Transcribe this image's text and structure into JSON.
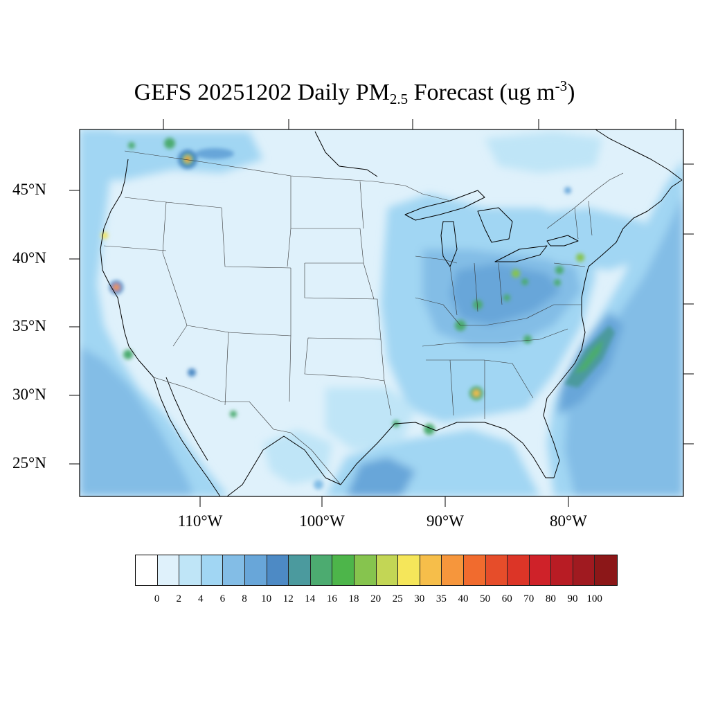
{
  "title": {
    "prefix": "GEFS 20251202 Daily PM",
    "subscript": "2.5",
    "suffix": " Forecast (ug m",
    "superscript": "-3",
    "close": ")"
  },
  "latitude_labels": [
    "45°N",
    "40°N",
    "35°N",
    "30°N",
    "25°N"
  ],
  "longitude_labels": [
    "110°W",
    "100°W",
    "90°W",
    "80°W"
  ],
  "colorbar": {
    "labels": [
      "0",
      "2",
      "4",
      "6",
      "8",
      "10",
      "12",
      "14",
      "16",
      "18",
      "20",
      "25",
      "30",
      "35",
      "40",
      "50",
      "60",
      "70",
      "80",
      "90",
      "100"
    ],
    "colors": [
      "#ffffff",
      "#dff1fb",
      "#bfe5f7",
      "#a1d6f3",
      "#83bde6",
      "#68a6d9",
      "#4d8ac5",
      "#4b9a9e",
      "#4cab70",
      "#4db54a",
      "#86c44e",
      "#c3d655",
      "#f5e65a",
      "#f6be4a",
      "#f6963c",
      "#f16b2e",
      "#e64d2a",
      "#dc3527",
      "#cf2229",
      "#b81c24",
      "#a01a20",
      "#8c1718"
    ]
  },
  "colors": {
    "background_fill": "#dff1fb",
    "ocean_fill": "#a1d6f3",
    "frame": "#000000"
  }
}
